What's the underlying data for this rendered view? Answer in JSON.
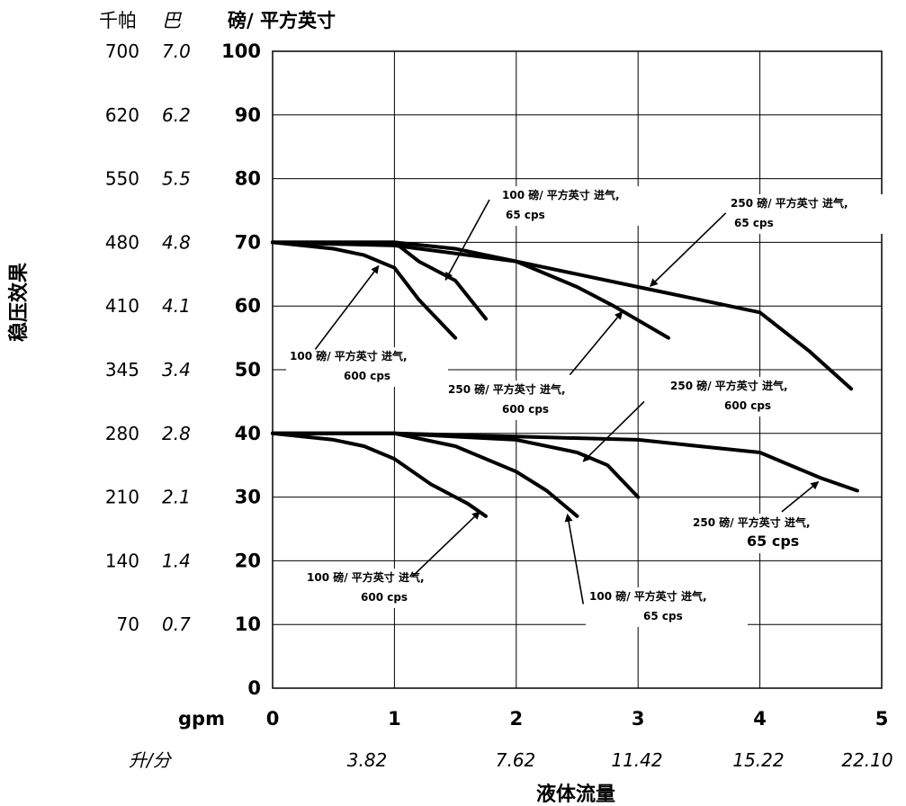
{
  "chart_data": {
    "type": "line",
    "header": {
      "kpa": "千帕",
      "bar": "巴",
      "psi": "磅/ 平方英寸"
    },
    "ylabel": "稳压效果",
    "xlabel": "液体流量",
    "x_unit_primary": "gpm",
    "x_unit_secondary": "升/分",
    "xlim": [
      0,
      5
    ],
    "ylim": [
      0,
      100
    ],
    "grid": true,
    "y_ticks_psi": [
      "100",
      "90",
      "80",
      "70",
      "60",
      "50",
      "40",
      "30",
      "20",
      "10",
      "0"
    ],
    "y_ticks_kpa": [
      "700",
      "620",
      "550",
      "480",
      "410",
      "345",
      "280",
      "210",
      "140",
      "70"
    ],
    "y_ticks_bar": [
      "7.0",
      "6.2",
      "5.5",
      "4.8",
      "4.1",
      "3.4",
      "2.8",
      "2.1",
      "1.4",
      "0.7"
    ],
    "x_ticks_gpm": [
      "0",
      "1",
      "2",
      "3",
      "4",
      "5"
    ],
    "x_ticks_lpm": [
      "3.82",
      "7.62",
      "11.42",
      "15.22",
      "22.10"
    ],
    "series": [
      {
        "x": [
          0,
          0.5,
          0.75,
          1.0,
          1.2,
          1.5
        ],
        "y": [
          70,
          69,
          68,
          66,
          61,
          55
        ]
      },
      {
        "x": [
          0,
          0.5,
          1.0,
          1.2,
          1.5,
          1.75
        ],
        "y": [
          70,
          70,
          70,
          67,
          64,
          58
        ]
      },
      {
        "x": [
          0,
          1.0,
          2.0,
          2.5,
          2.8,
          3.25
        ],
        "y": [
          70,
          69.5,
          67,
          63,
          60,
          55
        ]
      },
      {
        "x": [
          0,
          1.0,
          1.5,
          2.0,
          2.5,
          3.0,
          3.5,
          4.0,
          4.4,
          4.75
        ],
        "y": [
          70,
          70,
          69,
          67,
          65,
          63,
          61,
          59,
          53,
          47
        ]
      },
      {
        "x": [
          0,
          0.5,
          0.75,
          1.0,
          1.3,
          1.6,
          1.75
        ],
        "y": [
          40,
          39,
          38,
          36,
          32,
          29,
          27
        ]
      },
      {
        "x": [
          0,
          1.0,
          1.5,
          2.0,
          2.25,
          2.5
        ],
        "y": [
          40,
          40,
          38,
          34,
          31,
          27
        ]
      },
      {
        "x": [
          0,
          1.0,
          2.0,
          2.5,
          2.75,
          3.0
        ],
        "y": [
          40,
          40,
          39,
          37,
          35,
          30
        ]
      },
      {
        "x": [
          0,
          1.0,
          2.0,
          3.0,
          3.5,
          4.0,
          4.5,
          4.8
        ],
        "y": [
          40,
          40,
          39.5,
          39,
          38,
          37,
          33,
          31
        ]
      }
    ],
    "annotations": [
      {
        "lines": [
          "100 磅/ 平方英寸 进气,",
          "65 cps"
        ],
        "arrow_from": [
          1.78,
          76.7
        ],
        "arrow_to": [
          1.42,
          64.1
        ]
      },
      {
        "lines": [
          "250 磅/ 平方英寸 进气,",
          "65 cps"
        ],
        "arrow_from": [
          3.72,
          74.6
        ],
        "arrow_to": [
          3.1,
          63.1
        ]
      },
      {
        "lines": [
          "100 磅/ 平方英寸 进气,",
          "600 cps"
        ],
        "arrow_from": [
          0.35,
          53.2
        ],
        "arrow_to": [
          0.87,
          66.3
        ]
      },
      {
        "lines": [
          "250 磅/ 平方英寸 进气,",
          "600 cps"
        ],
        "arrow_from": [
          2.44,
          49.2
        ],
        "arrow_to": [
          2.87,
          59.1
        ]
      },
      {
        "lines": [
          "250 磅/ 平方英寸 进气,",
          "600 cps"
        ],
        "arrow_from": [
          3.05,
          45.0
        ],
        "arrow_to": [
          2.55,
          35.6
        ]
      },
      {
        "lines": [
          "250 磅/ 平方英寸 进气,",
          "65 cps"
        ],
        "arrow_from": [
          4.18,
          27.7
        ],
        "arrow_to": [
          4.48,
          32.4
        ]
      },
      {
        "lines": [
          "100 磅/ 平方英寸 进气,",
          "600 cps"
        ],
        "arrow_from": [
          1.15,
          17.6
        ],
        "arrow_to": [
          1.7,
          27.7
        ]
      },
      {
        "lines": [
          "100 磅/ 平方英寸 进气,",
          "65 cps"
        ],
        "arrow_from": [
          2.55,
          13.2
        ],
        "arrow_to": [
          2.42,
          27.3
        ]
      }
    ]
  }
}
